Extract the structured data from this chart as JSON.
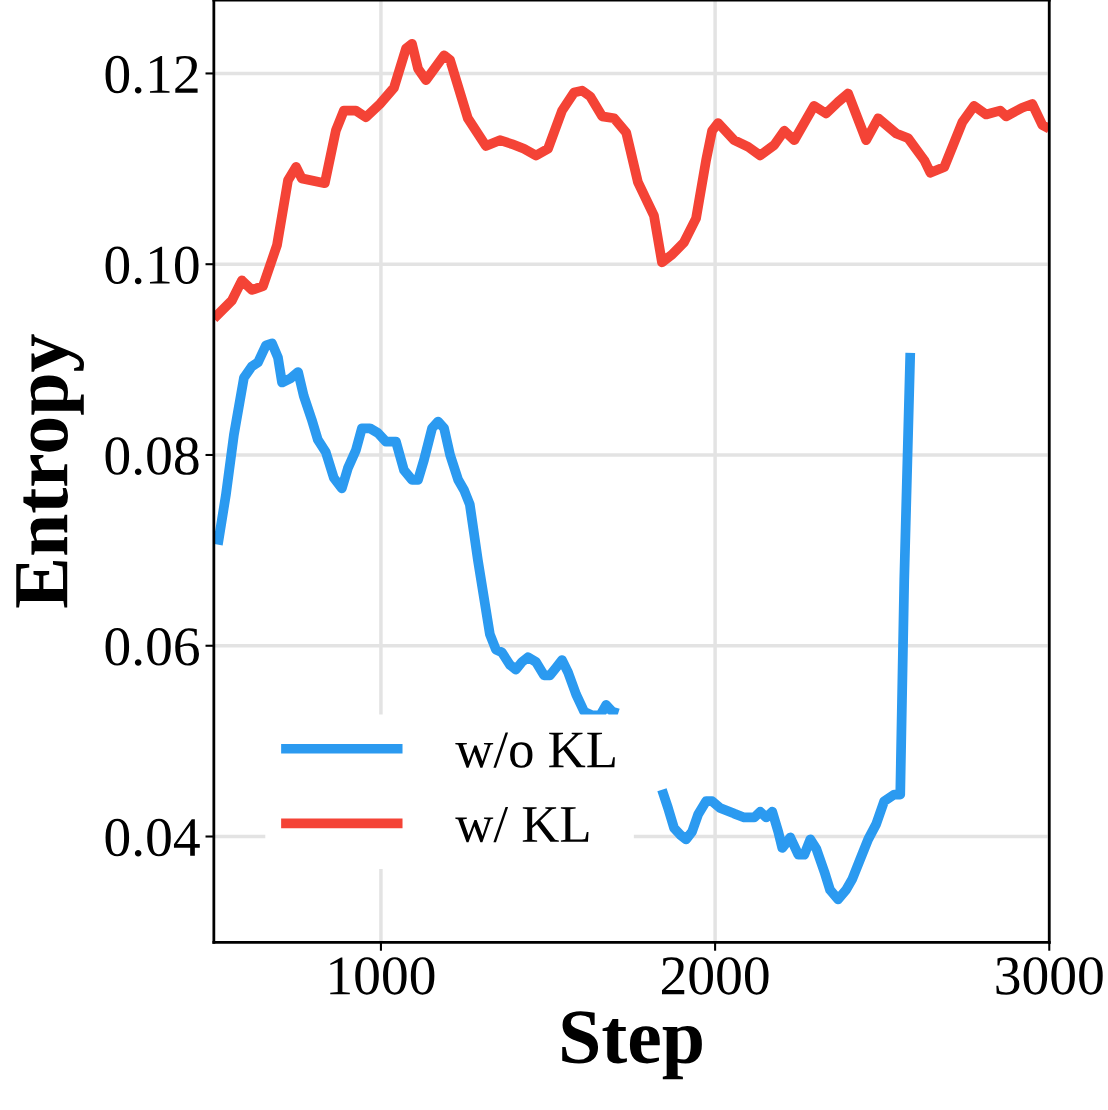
{
  "chart_data": {
    "type": "line",
    "xlabel": "Step",
    "ylabel": "Entropy",
    "xlim": [
      500,
      3000
    ],
    "xticks": [
      1000,
      2000,
      3000
    ],
    "ylim": [
      0.0289,
      0.1277
    ],
    "yticks": [
      {
        "value": 0.04,
        "label": "0.04"
      },
      {
        "value": 0.06,
        "label": "0.06"
      },
      {
        "value": 0.08,
        "label": "0.08"
      },
      {
        "value": 0.1,
        "label": "0.10"
      },
      {
        "value": 0.12,
        "label": "0.12"
      }
    ],
    "grid": true,
    "legend": "bottom left",
    "line_style": "solid",
    "marker": "none",
    "series": [
      {
        "name": "w/o KL",
        "color": "#2b9af0",
        "x": [
          512,
          536,
          560,
          590,
          614,
          632,
          656,
          674,
          692,
          704,
          728,
          752,
          769,
          793,
          811,
          835,
          859,
          883,
          901,
          925,
          943,
          967,
          991,
          1015,
          1045,
          1069,
          1093,
          1111,
          1129,
          1153,
          1171,
          1189,
          1207,
          1231,
          1249,
          1266,
          1290,
          1314,
          1326,
          1344,
          1362,
          1386,
          1404,
          1422,
          1440,
          1464,
          1488,
          1506,
          1524,
          1542,
          1560,
          1584,
          1608,
          1632,
          1656,
          1674,
          1692,
          1710,
          1770,
          1841,
          1859,
          1877,
          1895,
          1913,
          1931,
          1949,
          1973,
          1991,
          2015,
          2057,
          2087,
          2117,
          2135,
          2153,
          2171,
          2189,
          2201,
          2225,
          2249,
          2267,
          2285,
          2303,
          2327,
          2344,
          2368,
          2392,
          2410,
          2434,
          2458,
          2482,
          2506,
          2536,
          2554,
          2566,
          2584
        ],
        "values": [
          0.0706,
          0.0758,
          0.0821,
          0.0881,
          0.0893,
          0.0897,
          0.0915,
          0.0917,
          0.0902,
          0.0876,
          0.088,
          0.0887,
          0.0862,
          0.0837,
          0.0816,
          0.0803,
          0.0776,
          0.0765,
          0.0786,
          0.0805,
          0.0828,
          0.0828,
          0.0823,
          0.0814,
          0.0814,
          0.0784,
          0.0774,
          0.0774,
          0.0795,
          0.0828,
          0.0835,
          0.0828,
          0.08,
          0.0774,
          0.0763,
          0.0748,
          0.069,
          0.0638,
          0.0612,
          0.0596,
          0.0593,
          0.058,
          0.0575,
          0.0583,
          0.0588,
          0.0583,
          0.0569,
          0.0569,
          0.0577,
          0.0585,
          0.0572,
          0.0549,
          0.0531,
          0.0527,
          0.0527,
          0.0538,
          0.0531,
          0.0529,
          null,
          0.0449,
          0.043,
          0.0409,
          0.0402,
          0.0397,
          0.0405,
          0.0423,
          0.0437,
          0.0437,
          0.043,
          0.0424,
          0.042,
          0.042,
          0.0426,
          0.042,
          0.0426,
          0.0405,
          0.0388,
          0.0399,
          0.0381,
          0.0381,
          0.0397,
          0.0387,
          0.0363,
          0.0344,
          0.0334,
          0.0344,
          0.0355,
          0.0376,
          0.0397,
          0.0413,
          0.0437,
          0.0444,
          0.0444,
          0.0669,
          0.0907
        ]
      },
      {
        "name": "w/ KL",
        "color": "#f44336",
        "x": [
          500,
          554,
          584,
          614,
          647,
          689,
          722,
          746,
          763,
          832,
          865,
          889,
          925,
          955,
          997,
          1039,
          1075,
          1093,
          1111,
          1135,
          1189,
          1207,
          1260,
          1314,
          1356,
          1392,
          1428,
          1464,
          1500,
          1542,
          1578,
          1602,
          1626,
          1662,
          1698,
          1734,
          1769,
          1817,
          1841,
          1871,
          1907,
          1943,
          1973,
          1991,
          2009,
          2057,
          2099,
          2135,
          2177,
          2207,
          2237,
          2296,
          2332,
          2368,
          2398,
          2452,
          2488,
          2542,
          2578,
          2626,
          2644,
          2686,
          2740,
          2775,
          2811,
          2853,
          2871,
          2919,
          2949,
          2979,
          3000
        ],
        "values": [
          0.0943,
          0.0962,
          0.0983,
          0.0973,
          0.0977,
          0.102,
          0.1088,
          0.1102,
          0.109,
          0.1085,
          0.114,
          0.1161,
          0.1161,
          0.1154,
          0.1168,
          0.1185,
          0.1226,
          0.1231,
          0.1205,
          0.1193,
          0.1219,
          0.1214,
          0.1153,
          0.1124,
          0.113,
          0.1126,
          0.1121,
          0.1114,
          0.1121,
          0.1161,
          0.118,
          0.1182,
          0.1176,
          0.1155,
          0.1153,
          0.1138,
          0.1086,
          0.1051,
          0.1002,
          0.101,
          0.1023,
          0.1048,
          0.1109,
          0.114,
          0.1148,
          0.113,
          0.1123,
          0.1114,
          0.1125,
          0.114,
          0.113,
          0.1166,
          0.1158,
          0.117,
          0.1179,
          0.113,
          0.1153,
          0.1137,
          0.1132,
          0.1109,
          0.1096,
          0.1102,
          0.1149,
          0.1166,
          0.1157,
          0.1161,
          0.1155,
          0.1164,
          0.1168,
          0.1146,
          0.1142
        ]
      }
    ]
  }
}
